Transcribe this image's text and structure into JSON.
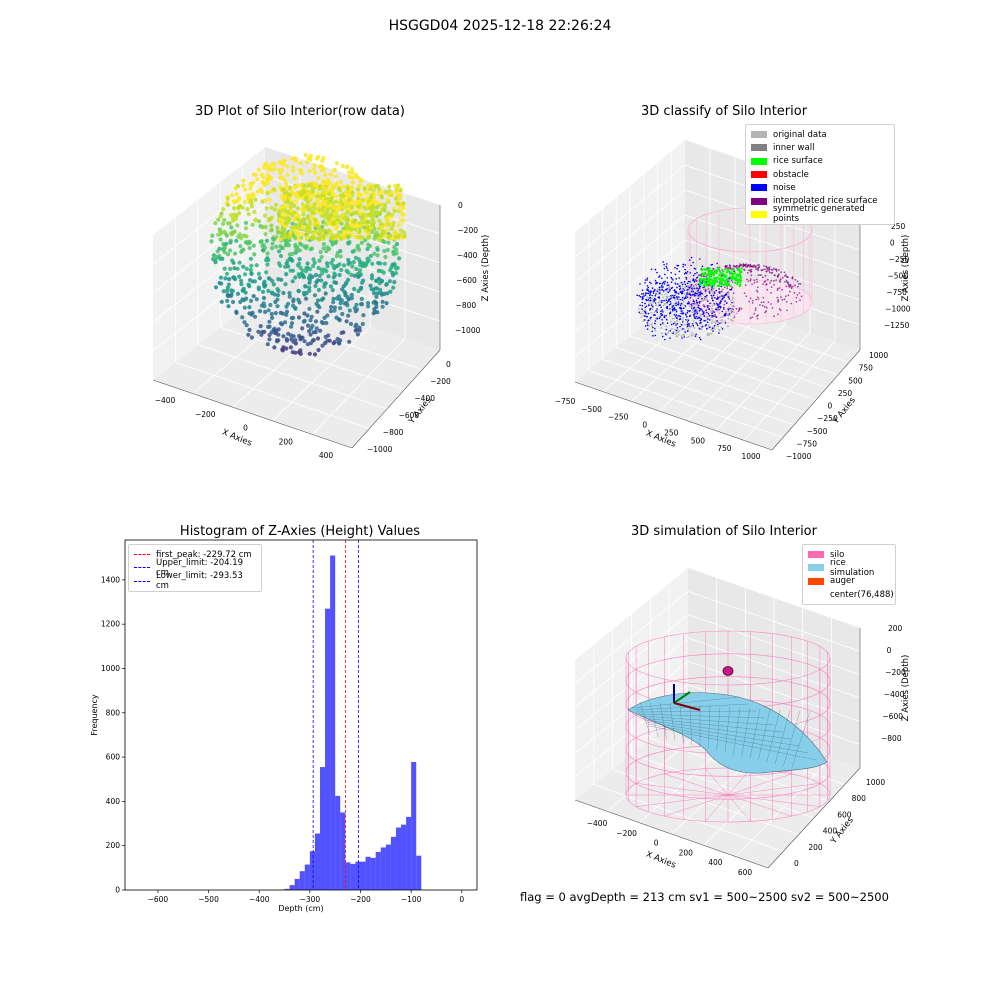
{
  "suptitle": "HSGGD04 2025-12-18 22:26:24",
  "panels": {
    "raw3d": {
      "title": "3D Plot of Silo Interior(row data)",
      "xlabel": "X Axies",
      "ylabel": "Y Axies",
      "zlabel": "Z Axies (Depth)",
      "xticks": [
        "−400",
        "−200",
        "0",
        "200",
        "400"
      ],
      "yticks": [
        "0",
        "−200",
        "−400",
        "−600",
        "−800",
        "−1000"
      ],
      "zticks": [
        "0",
        "−200",
        "−400",
        "−600",
        "−800",
        "−1000"
      ]
    },
    "classify3d": {
      "title": "3D classify of Silo Interior",
      "xlabel": "X Axies",
      "ylabel": "Y Axies",
      "zlabel": "Z Axies (Depth)",
      "xticks": [
        "−750",
        "−500",
        "−250",
        "0",
        "250",
        "500",
        "750",
        "1000"
      ],
      "yticks": [
        "1000",
        "750",
        "500",
        "250",
        "0",
        "−250",
        "−500",
        "−750",
        "−1000"
      ],
      "zticks": [
        "250",
        "0",
        "−250",
        "−500",
        "−750",
        "−1000",
        "−1250"
      ],
      "ztick_partial": "0",
      "legend": [
        {
          "label": "original data",
          "color": "#b3b3b3"
        },
        {
          "label": "inner wall",
          "color": "#808080"
        },
        {
          "label": "rice surface",
          "color": "#00ff00"
        },
        {
          "label": "obstacle",
          "color": "#ff0000"
        },
        {
          "label": "noise",
          "color": "#0000ff"
        },
        {
          "label": "interpolated rice surface",
          "color": "#800080"
        },
        {
          "label": "symmetric generated points",
          "color": "#ffff00"
        }
      ]
    },
    "hist": {
      "title": "Histogram of Z-Axies (Height) Values",
      "xlabel": "Depth (cm)",
      "ylabel": "Frequency",
      "legend": [
        {
          "label": "first_peak: -229.72 cm",
          "color": "#ff0000"
        },
        {
          "label": "Upper_limit: -204.19 cm",
          "color": "#0000ff"
        },
        {
          "label": "Lower_limit: -293.53 cm",
          "color": "#0000ff"
        }
      ]
    },
    "sim3d": {
      "title": "3D simulation of Silo Interior",
      "xlabel": "X Axies",
      "ylabel": "Y Axies",
      "zlabel": "Z Axies (Depth)",
      "xticks": [
        "−400",
        "−200",
        "0",
        "200",
        "400",
        "600"
      ],
      "yticks": [
        "1000",
        "800",
        "600",
        "400",
        "200",
        "0"
      ],
      "zticks": [
        "200",
        "0",
        "−200",
        "−400",
        "−600",
        "−800"
      ],
      "legend": [
        {
          "label": "silo",
          "color": "#ff69b4"
        },
        {
          "label": "rice simulation",
          "color": "#87ceeb"
        },
        {
          "label": "auger",
          "color": "#ff4500"
        },
        {
          "label": "center(76,488)",
          "color": "#ffffff"
        }
      ]
    }
  },
  "footer": "flag = 0     avgDepth = 213 cm  sv1 = 500~2500  sv2 = 500~2500",
  "chart_data": {
    "type": "bar",
    "title": "Histogram of Z-Axies (Height) Values",
    "xlabel": "Depth (cm)",
    "ylabel": "Frequency",
    "xlim": [
      -665,
      30
    ],
    "ylim": [
      0,
      1580
    ],
    "xticks": [
      -600,
      -500,
      -400,
      -300,
      -200,
      -100,
      0
    ],
    "yticks": [
      0,
      200,
      400,
      600,
      800,
      1000,
      1200,
      1400
    ],
    "bin_width": 10,
    "bins": [
      [
        -390,
        1
      ],
      [
        -380,
        1
      ],
      [
        -370,
        1
      ],
      [
        -360,
        2
      ],
      [
        -350,
        5
      ],
      [
        -340,
        22
      ],
      [
        -330,
        50
      ],
      [
        -320,
        85
      ],
      [
        -310,
        115
      ],
      [
        -300,
        175
      ],
      [
        -290,
        255
      ],
      [
        -280,
        555
      ],
      [
        -270,
        1270
      ],
      [
        -260,
        1510
      ],
      [
        -250,
        425
      ],
      [
        -240,
        350
      ],
      [
        -230,
        125
      ],
      [
        -220,
        118
      ],
      [
        -210,
        128
      ],
      [
        -200,
        128
      ],
      [
        -190,
        150
      ],
      [
        -180,
        145
      ],
      [
        -170,
        172
      ],
      [
        -160,
        192
      ],
      [
        -150,
        205
      ],
      [
        -140,
        240
      ],
      [
        -130,
        282
      ],
      [
        -120,
        295
      ],
      [
        -110,
        330
      ],
      [
        -100,
        578
      ],
      [
        -90,
        155
      ]
    ],
    "bar_color": "#0000ff",
    "vlines": [
      {
        "name": "first_peak",
        "x": -229.72,
        "color": "#ff0000"
      },
      {
        "name": "Upper_limit",
        "x": -204.19,
        "color": "#0000ff"
      },
      {
        "name": "Lower_limit",
        "x": -293.53,
        "color": "#0000ff"
      }
    ]
  }
}
